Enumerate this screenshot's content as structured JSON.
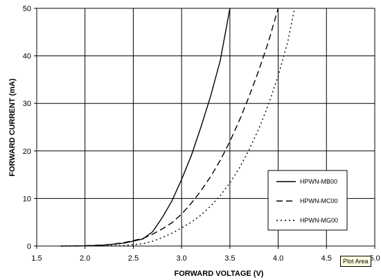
{
  "chart_data": {
    "type": "line",
    "title": "",
    "xlabel": "FORWARD VOLTAGE (V)",
    "ylabel": "FORWARD CURRENT (mA)",
    "xlim": [
      1.5,
      5.0
    ],
    "ylim": [
      0,
      50
    ],
    "xticks": [
      "1.5",
      "2.0",
      "2.5",
      "3.0",
      "3.5",
      "4.0",
      "4.5",
      "5.0"
    ],
    "yticks": [
      "0",
      "10",
      "20",
      "30",
      "40",
      "50"
    ],
    "grid": true,
    "legend_position": "right",
    "series": [
      {
        "name": "HPWN-MB00",
        "style": "solid",
        "color": "#000000",
        "points": [
          [
            1.75,
            0
          ],
          [
            2.0,
            0.05
          ],
          [
            2.2,
            0.2
          ],
          [
            2.4,
            0.6
          ],
          [
            2.6,
            1.5
          ],
          [
            2.7,
            3
          ],
          [
            2.8,
            6
          ],
          [
            2.9,
            9.5
          ],
          [
            3.0,
            14
          ],
          [
            3.1,
            19
          ],
          [
            3.2,
            25
          ],
          [
            3.3,
            31.5
          ],
          [
            3.4,
            39
          ],
          [
            3.5,
            50
          ]
        ]
      },
      {
        "name": "HPWN-MC00",
        "style": "dashed",
        "color": "#000000",
        "points": [
          [
            1.9,
            0
          ],
          [
            2.2,
            0.2
          ],
          [
            2.4,
            0.7
          ],
          [
            2.6,
            1.6
          ],
          [
            2.7,
            2.5
          ],
          [
            2.8,
            3.6
          ],
          [
            2.9,
            4.9
          ],
          [
            3.0,
            6.7
          ],
          [
            3.1,
            9
          ],
          [
            3.2,
            11.6
          ],
          [
            3.3,
            14.6
          ],
          [
            3.4,
            18
          ],
          [
            3.5,
            22
          ],
          [
            3.6,
            26.5
          ],
          [
            3.7,
            31.5
          ],
          [
            3.8,
            37
          ],
          [
            3.9,
            43
          ],
          [
            4.0,
            50
          ]
        ]
      },
      {
        "name": "HPWN-MG00",
        "style": "dotted",
        "color": "#000000",
        "points": [
          [
            1.75,
            0
          ],
          [
            2.4,
            0.1
          ],
          [
            2.6,
            0.5
          ],
          [
            2.7,
            1
          ],
          [
            2.8,
            1.8
          ],
          [
            2.9,
            2.7
          ],
          [
            3.0,
            3.8
          ],
          [
            3.1,
            5
          ],
          [
            3.2,
            6.5
          ],
          [
            3.3,
            8.4
          ],
          [
            3.4,
            10.6
          ],
          [
            3.5,
            13.3
          ],
          [
            3.6,
            16.5
          ],
          [
            3.7,
            20.3
          ],
          [
            3.8,
            24.7
          ],
          [
            3.9,
            29.8
          ],
          [
            4.0,
            35.8
          ],
          [
            4.1,
            43
          ],
          [
            4.17,
            50
          ]
        ]
      }
    ]
  },
  "tooltip": {
    "text": "Plot Area"
  }
}
